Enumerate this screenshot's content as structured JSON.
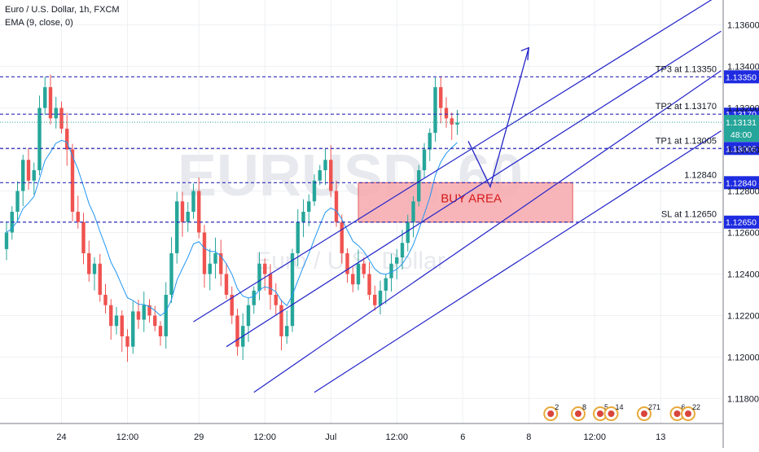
{
  "chart_data": {
    "type": "candlestick",
    "instrument": "Euro / U.S. Dollar, 1h, FXCM",
    "indicator": "EMA (9, close, 0)",
    "watermark": "EURUSD, 60",
    "watermark_sub": "Euro / U.S. Dollar",
    "ylim": [
      1.1168,
      1.1372
    ],
    "y_ticks": [
      "1.13600",
      "1.13400",
      "1.13200",
      "1.13000",
      "1.12800",
      "1.12600",
      "1.12400",
      "1.12200",
      "1.12000",
      "1.11800"
    ],
    "x_ticks": [
      {
        "label": "24",
        "i": 10
      },
      {
        "label": "12:00",
        "i": 22
      },
      {
        "label": "29",
        "i": 35
      },
      {
        "label": "12:00",
        "i": 47
      },
      {
        "label": "Jul",
        "i": 59
      },
      {
        "label": "12:00",
        "i": 71
      },
      {
        "label": "6",
        "i": 83
      },
      {
        "label": "8",
        "i": 95
      },
      {
        "label": "12:00",
        "i": 107
      },
      {
        "label": "13",
        "i": 119
      }
    ],
    "closes": [
      1.126,
      1.127,
      1.128,
      1.1295,
      1.1285,
      1.129,
      1.132,
      1.133,
      1.1315,
      1.132,
      1.131,
      1.13,
      1.127,
      1.1265,
      1.125,
      1.124,
      1.1245,
      1.123,
      1.1225,
      1.1215,
      1.122,
      1.121,
      1.1205,
      1.1222,
      1.1218,
      1.1225,
      1.122,
      1.1215,
      1.121,
      1.123,
      1.125,
      1.1275,
      1.1265,
      1.127,
      1.128,
      1.126,
      1.124,
      1.1245,
      1.125,
      1.124,
      1.123,
      1.122,
      1.1205,
      1.1215,
      1.1225,
      1.1232,
      1.1245,
      1.124,
      1.123,
      1.1225,
      1.121,
      1.1215,
      1.125,
      1.1265,
      1.127,
      1.1275,
      1.1285,
      1.129,
      1.1295,
      1.128,
      1.1265,
      1.125,
      1.124,
      1.1235,
      1.1245,
      1.124,
      1.123,
      1.1225,
      1.1232,
      1.1238,
      1.1245,
      1.1248,
      1.1255,
      1.1265,
      1.1275,
      1.129,
      1.13,
      1.1308,
      1.133,
      1.132,
      1.1315,
      1.1312,
      1.1313
    ],
    "hlines": [
      {
        "label": "TP3 at 1.13350",
        "value": 1.1335,
        "tag": "1.13350"
      },
      {
        "label": "TP2 at 1.13170",
        "value": 1.1317,
        "tag": "1.13170"
      },
      {
        "label": "TP1 at 1.13005",
        "value": 1.13005,
        "tag": "1.13005"
      },
      {
        "label": "1.12840",
        "value": 1.1284,
        "tag": "1.12840"
      },
      {
        "label": "SL at 1.12650",
        "value": 1.1265,
        "tag": "1.12650"
      }
    ],
    "current_price": "1.13131",
    "countdown": "48:00",
    "buy_area": {
      "label": "BUY AREA",
      "top": 1.1284,
      "bottom": 1.1265
    },
    "events": [
      {
        "count": "2",
        "i": 99
      },
      {
        "count": "8",
        "i": 104
      },
      {
        "count": "5",
        "i": 108
      },
      {
        "count": "14",
        "i": 110
      },
      {
        "count": "271",
        "i": 116
      },
      {
        "count": "6",
        "i": 122
      },
      {
        "count": "22",
        "i": 124
      }
    ],
    "colors": {
      "up": "#26a69a",
      "down": "#ef5350",
      "ema": "#2196f3",
      "channel": "#2424c9",
      "buy_area": "#f7a8ad",
      "tag": "#1e2be0"
    }
  }
}
